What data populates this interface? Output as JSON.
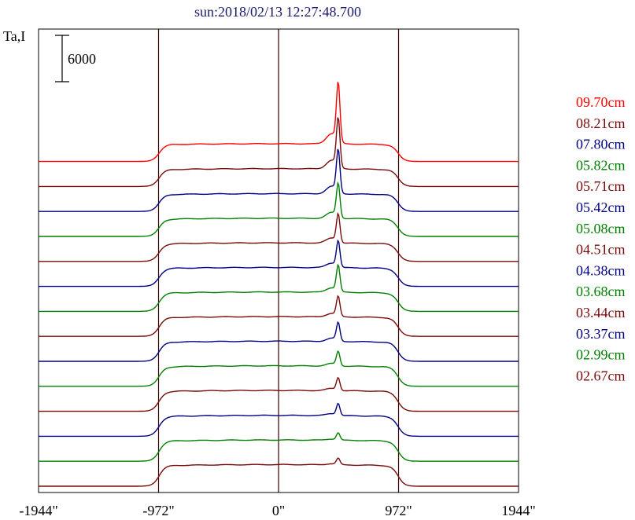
{
  "chart_data": {
    "type": "line",
    "title": "sun:2018/02/13 12:27:48.700",
    "ylabel": "Ta,I",
    "scale_bar_label": "6000",
    "scale_bar_value": 6000,
    "xlim": [
      -1944,
      1944
    ],
    "x_ticks": [
      {
        "value": -1944,
        "label": "-1944\""
      },
      {
        "value": -972,
        "label": "-972\""
      },
      {
        "value": 0,
        "label": "0\""
      },
      {
        "value": 972,
        "label": "972\""
      },
      {
        "value": 1944,
        "label": "1944\""
      }
    ],
    "vertical_markers": [
      -972,
      0,
      972
    ],
    "grid": false,
    "legend_position": "right",
    "series": [
      {
        "name": "09.70cm",
        "color": "#ff0000",
        "peak": 7500,
        "bump": 2300
      },
      {
        "name": "08.21cm",
        "color": "#7a0a0a",
        "peak": 6200,
        "bump": 2300
      },
      {
        "name": "07.80cm",
        "color": "#000080",
        "peak": 5400,
        "bump": 2300
      },
      {
        "name": "05.82cm",
        "color": "#008000",
        "peak": 4300,
        "bump": 2350
      },
      {
        "name": "05.71cm",
        "color": "#7a0a0a",
        "peak": 3600,
        "bump": 2400
      },
      {
        "name": "05.42cm",
        "color": "#000080",
        "peak": 3300,
        "bump": 2450
      },
      {
        "name": "05.08cm",
        "color": "#008000",
        "peak": 3300,
        "bump": 2500
      },
      {
        "name": "04.51cm",
        "color": "#7a0a0a",
        "peak": 2500,
        "bump": 2550
      },
      {
        "name": "04.38cm",
        "color": "#000080",
        "peak": 2300,
        "bump": 2600
      },
      {
        "name": "03.68cm",
        "color": "#008000",
        "peak": 1800,
        "bump": 2650
      },
      {
        "name": "03.44cm",
        "color": "#7a0a0a",
        "peak": 1600,
        "bump": 2700
      },
      {
        "name": "03.37cm",
        "color": "#000080",
        "peak": 1500,
        "bump": 2700
      },
      {
        "name": "02.99cm",
        "color": "#008000",
        "peak": 900,
        "bump": 2750
      },
      {
        "name": "02.67cm",
        "color": "#7a0a0a",
        "peak": 800,
        "bump": 2800
      }
    ]
  }
}
